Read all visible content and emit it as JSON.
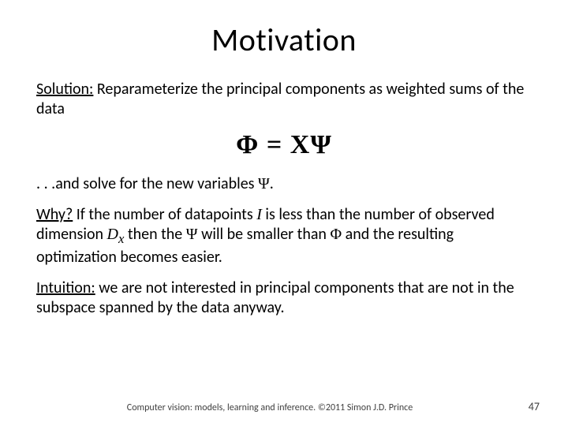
{
  "title": "Motivation",
  "solution": {
    "label": "Solution:",
    "text": " Reparameterize the principal components as weighted sums of the data"
  },
  "equation": {
    "Phi": "Φ",
    "eq": " = ",
    "X": "X",
    "Psi": "Ψ"
  },
  "solve": {
    "prefix": ". . .and solve for the new variables ",
    "var": "Ψ",
    "suffix": "."
  },
  "why": {
    "label": "Why?",
    "t1": "  If the number of datapoints ",
    "I": "I",
    "t2": " is less than the number of observed dimension ",
    "Dx": "D",
    "Dxsub": "x",
    "t3": " then the ",
    "Psi": "Ψ",
    "t4": " will be smaller than ",
    "Phi": "Φ",
    "t5": " and the resulting optimization becomes easier."
  },
  "intuition": {
    "label": "Intuition:",
    "text": "  we are not interested in principal components  that are not in the subspace spanned by the data anyway."
  },
  "footer": {
    "text": "Computer vision: models, learning and inference.   ©2011 Simon J.D. Prince",
    "page": "47"
  },
  "colors": {
    "background": "#ffffff",
    "text": "#000000",
    "footer": "#404040"
  },
  "fonts": {
    "body_size_pt": 20,
    "title_size_pt": 40,
    "equation_size_pt": 34,
    "footer_size_pt": 12
  }
}
